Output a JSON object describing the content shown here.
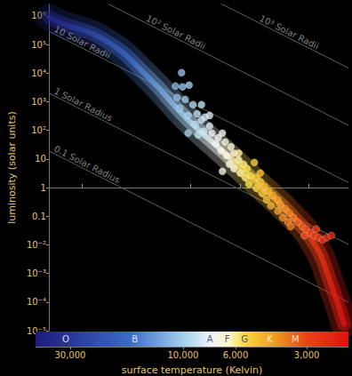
{
  "chart_data": {
    "type": "scatter",
    "log": true,
    "grid": false,
    "marker": "circle",
    "x_label": "surface temperature (Kelvin)",
    "y_label": "luminosity (solar units)",
    "xlim": [
      42000,
      2000
    ],
    "ylim": [
      1e-05,
      2500000
    ],
    "xticks": [
      {
        "value": 30000,
        "label": "30,000"
      },
      {
        "value": 10000,
        "label": "10,000"
      },
      {
        "value": 6000,
        "label": "6,000"
      },
      {
        "value": 3000,
        "label": "3,000"
      }
    ],
    "yticks": [
      {
        "value": 1e-05,
        "label": "10⁻⁵"
      },
      {
        "value": 0.0001,
        "label": "10⁻⁴"
      },
      {
        "value": 0.001,
        "label": "10⁻³"
      },
      {
        "value": 0.01,
        "label": "10⁻²"
      },
      0.1,
      1,
      10,
      {
        "value": 100,
        "label": "10²"
      },
      {
        "value": 1000,
        "label": "10³"
      },
      {
        "value": 10000,
        "label": "10⁴"
      },
      {
        "value": 100000,
        "label": "10⁵"
      },
      {
        "value": 1000000,
        "label": "10⁶"
      }
    ],
    "x": [
      10900,
      11600,
      10800,
      10100,
      11400,
      10500,
      9700,
      11100,
      9300,
      10200,
      8900,
      8600,
      9500,
      8200,
      7200,
      8700,
      8000,
      7500,
      9200,
      7700,
      7000,
      6600,
      7300,
      6900,
      6400,
      6100,
      6700,
      5800,
      6400,
      5600,
      6000,
      5400,
      5700,
      5100,
      4900,
      5500,
      4700,
      5100,
      4500,
      4800,
      4300,
      4600,
      4100,
      4000,
      4400,
      3800,
      4100,
      3650,
      3900,
      3500,
      3700,
      3350,
      3600,
      3200,
      3080,
      2950,
      3130,
      2830,
      2710,
      2600,
      2490,
      2380,
      2780,
      8900,
      8200,
      10200,
      6100,
      5200,
      7200,
      4900
    ],
    "values": [
      10300,
      3500,
      3300,
      3800,
      1400,
      1200,
      790,
      590,
      380,
      330,
      230,
      290,
      160,
      140,
      3.7,
      92,
      80,
      56,
      69,
      34,
      39,
      27,
      19,
      13,
      16,
      9.3,
      6.5,
      6.5,
      4.6,
      4.6,
      3.2,
      2.6,
      2.2,
      2.2,
      1.6,
      1.3,
      1.1,
      0.94,
      0.76,
      0.62,
      0.53,
      0.37,
      0.37,
      0.26,
      0.23,
      0.18,
      0.15,
      0.13,
      0.089,
      0.089,
      0.062,
      0.062,
      0.044,
      0.044,
      0.035,
      0.026,
      0.021,
      0.021,
      0.018,
      0.015,
      0.018,
      0.021,
      0.035,
      790,
      330,
      80,
      16,
      7.5,
      80,
      3.2
    ],
    "main_sequence": {
      "x": [
        42000,
        38100,
        23800,
        15600,
        10200,
        7200,
        5100,
        3650,
        2830,
        2380,
        2090
      ],
      "values": [
        900000,
        600000,
        140000,
        8300,
        230,
        19,
        1.5,
        0.13,
        0.011,
        0.0004,
        1.7e-05
      ]
    },
    "radius_lines": [
      {
        "label": "0.1 Solar Radius",
        "x": [
          42000,
          2000
        ],
        "values": [
          19,
          9.8e-05
        ]
      },
      {
        "label": "1 Solar Radius",
        "x": [
          42000,
          2000
        ],
        "values": [
          2000,
          0.0103
        ]
      },
      {
        "label": "10 Solar Radii",
        "x": [
          42000,
          2000
        ],
        "values": [
          290000,
          1.5
        ]
      },
      {
        "label": "10² Solar Radii",
        "x": [
          42000,
          2000
        ],
        "values": [
          29000000,
          150
        ]
      },
      {
        "label": "10³ Solar Radii",
        "x": [
          42000,
          2000
        ],
        "values": [
          2900000000,
          15000
        ]
      }
    ],
    "spectral_classes": {
      "labels": [
        "O",
        "B",
        "A",
        "F",
        "G",
        "K",
        "M"
      ],
      "x": [
        31300,
        16000,
        7700,
        6500,
        5500,
        4300,
        3350
      ]
    }
  }
}
